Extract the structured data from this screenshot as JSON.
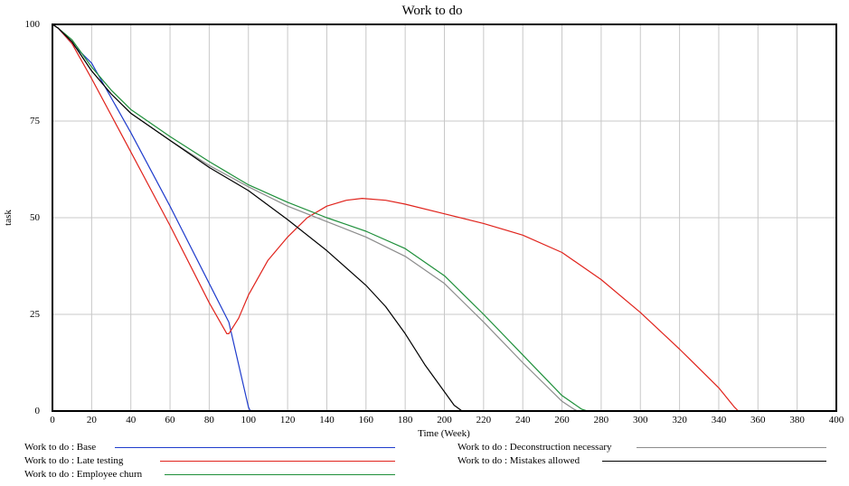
{
  "chart_data": {
    "type": "line",
    "title": "Work to do",
    "xlabel": "Time (Week)",
    "ylabel": "task",
    "xlim": [
      0,
      400
    ],
    "ylim": [
      0,
      100
    ],
    "x_ticks": [
      0,
      20,
      40,
      60,
      80,
      100,
      120,
      140,
      160,
      180,
      200,
      220,
      240,
      260,
      280,
      300,
      320,
      340,
      360,
      380,
      400
    ],
    "y_ticks": [
      0,
      25,
      50,
      75,
      100
    ],
    "grid": true,
    "legend_position": "bottom",
    "series": [
      {
        "name": "Work to do : Base",
        "color": "#1f3ccc",
        "x": [
          0,
          3,
          10,
          20,
          40,
          60,
          80,
          90,
          100,
          101,
          120,
          200,
          300,
          400
        ],
        "y": [
          100,
          99,
          95,
          90,
          72,
          53,
          33,
          23,
          1,
          0,
          0,
          0,
          0,
          0
        ]
      },
      {
        "name": "Work to do : Late testing",
        "color": "#e0231c",
        "x": [
          0,
          3,
          10,
          20,
          40,
          60,
          80,
          89,
          90,
          95,
          100,
          110,
          120,
          130,
          140,
          150,
          158,
          170,
          180,
          200,
          220,
          240,
          260,
          280,
          300,
          320,
          340,
          348,
          350,
          400
        ],
        "y": [
          100,
          99,
          95,
          86,
          67,
          48,
          28,
          20,
          20,
          24,
          30,
          39,
          45,
          50,
          53,
          54.5,
          55,
          54.5,
          53.5,
          51,
          48.5,
          45.5,
          41,
          34,
          25.5,
          16,
          6,
          1,
          0,
          0
        ]
      },
      {
        "name": "Work to do : Employee churn",
        "color": "#1e8f3a",
        "x": [
          0,
          3,
          10,
          20,
          30,
          40,
          60,
          80,
          100,
          120,
          140,
          160,
          180,
          200,
          220,
          240,
          260,
          270,
          273,
          300,
          400
        ],
        "y": [
          100,
          99,
          96,
          89,
          83,
          78,
          71,
          64.5,
          58.5,
          54,
          50,
          46.5,
          42,
          35,
          25,
          14.5,
          4,
          0.5,
          0,
          0,
          0
        ]
      },
      {
        "name": "Work to do : Deconstruction necessary",
        "color": "#8c8c8c",
        "x": [
          0,
          3,
          10,
          20,
          30,
          40,
          60,
          80,
          100,
          120,
          140,
          160,
          180,
          200,
          220,
          240,
          260,
          266,
          268,
          300,
          400
        ],
        "y": [
          100,
          99,
          95.5,
          88,
          82,
          77,
          70,
          63.5,
          58,
          53,
          49,
          45,
          40,
          33,
          23,
          12.5,
          2.5,
          0.5,
          0,
          0,
          0
        ]
      },
      {
        "name": "Work to do : Mistakes allowed",
        "color": "#000000",
        "x": [
          0,
          3,
          10,
          20,
          30,
          40,
          60,
          80,
          100,
          120,
          140,
          160,
          170,
          180,
          190,
          200,
          205,
          209,
          210,
          300,
          400
        ],
        "y": [
          100,
          99,
          95.5,
          88,
          82,
          77,
          70,
          63,
          57,
          49.5,
          41.5,
          32.5,
          27,
          20,
          12,
          5,
          1.5,
          0,
          0,
          0,
          0
        ]
      }
    ]
  }
}
